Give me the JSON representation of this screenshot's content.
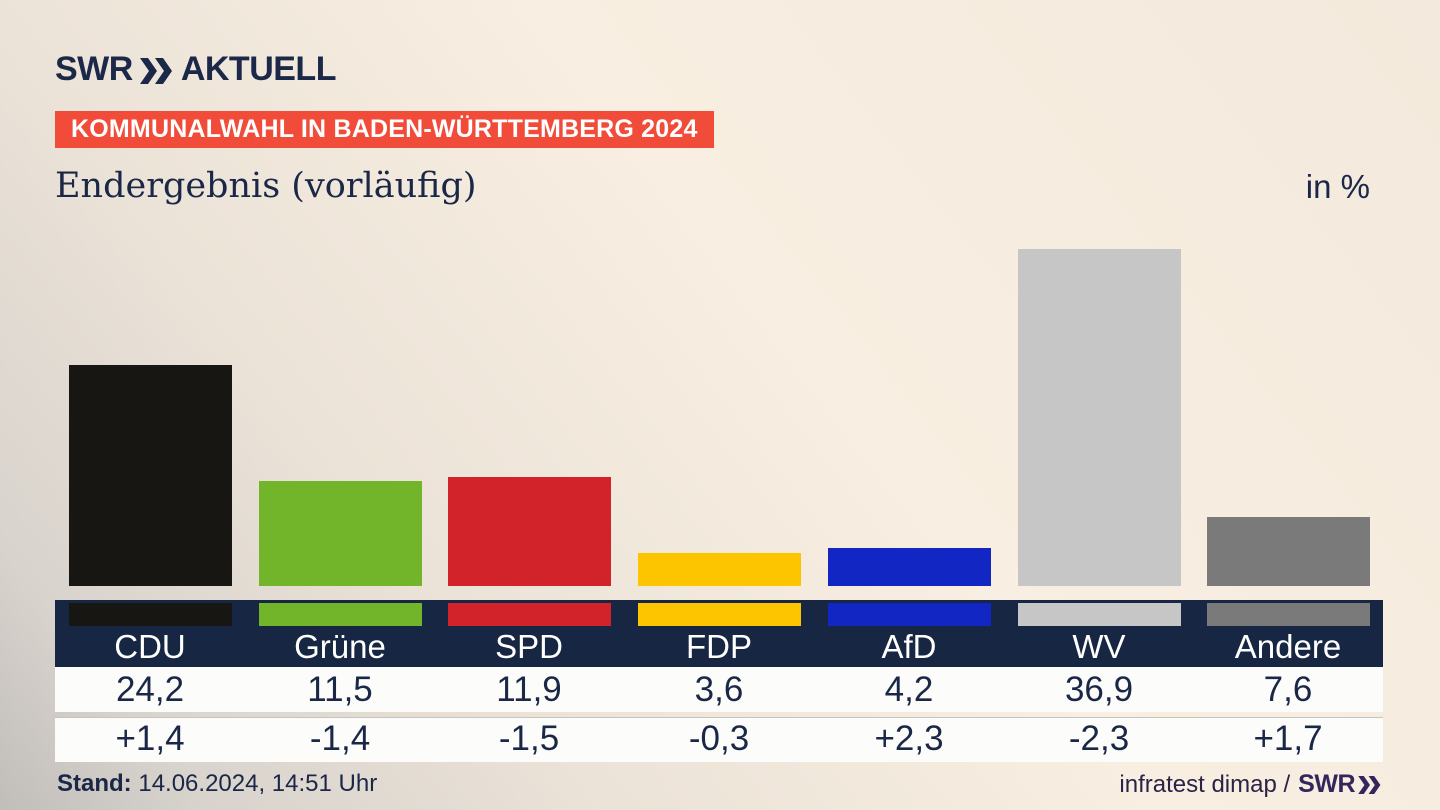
{
  "header": {
    "logo": {
      "swr": "SWR",
      "aktuell": "AKTUELL"
    },
    "badge": "KOMMUNALWAHL IN BADEN-WÜRTTEMBERG 2024",
    "title": "Endergebnis (vorläufig)",
    "unit_label": "in %"
  },
  "chart_data": {
    "type": "bar",
    "title": "Endergebnis (vorläufig)",
    "subtitle": "KOMMUNALWAHL IN BADEN-WÜRTTEMBERG 2024",
    "ylabel": "in %",
    "ylim": [
      0,
      40
    ],
    "grid": false,
    "legend_position": "none",
    "categories": [
      "CDU",
      "Grüne",
      "SPD",
      "FDP",
      "AfD",
      "WV",
      "Andere"
    ],
    "values": [
      24.2,
      11.5,
      11.9,
      3.6,
      4.2,
      36.9,
      7.6
    ],
    "value_labels": [
      "24,2",
      "11,5",
      "11,9",
      "3,6",
      "4,2",
      "36,9",
      "7,6"
    ],
    "change_labels": [
      "+1,4",
      "-1,4",
      "-1,5",
      "-0,3",
      "+2,3",
      "-2,3",
      "+1,7"
    ],
    "bar_colors": [
      "#171613",
      "#72b52a",
      "#d2232a",
      "#fdc500",
      "#1226c4",
      "#c6c6c6",
      "#7a7a7a"
    ]
  },
  "footer": {
    "stand_label": "Stand:",
    "stand_value": " 14.06.2024, 14:51 Uhr",
    "source": "infratest dimap /",
    "source_logo": "SWR"
  },
  "colors": {
    "badge_red": "#f14b3a",
    "navy_band": "#172642",
    "text_navy": "#1a2747",
    "footer_logo_purple": "#33265c",
    "row_white": "#fcfcfb"
  }
}
